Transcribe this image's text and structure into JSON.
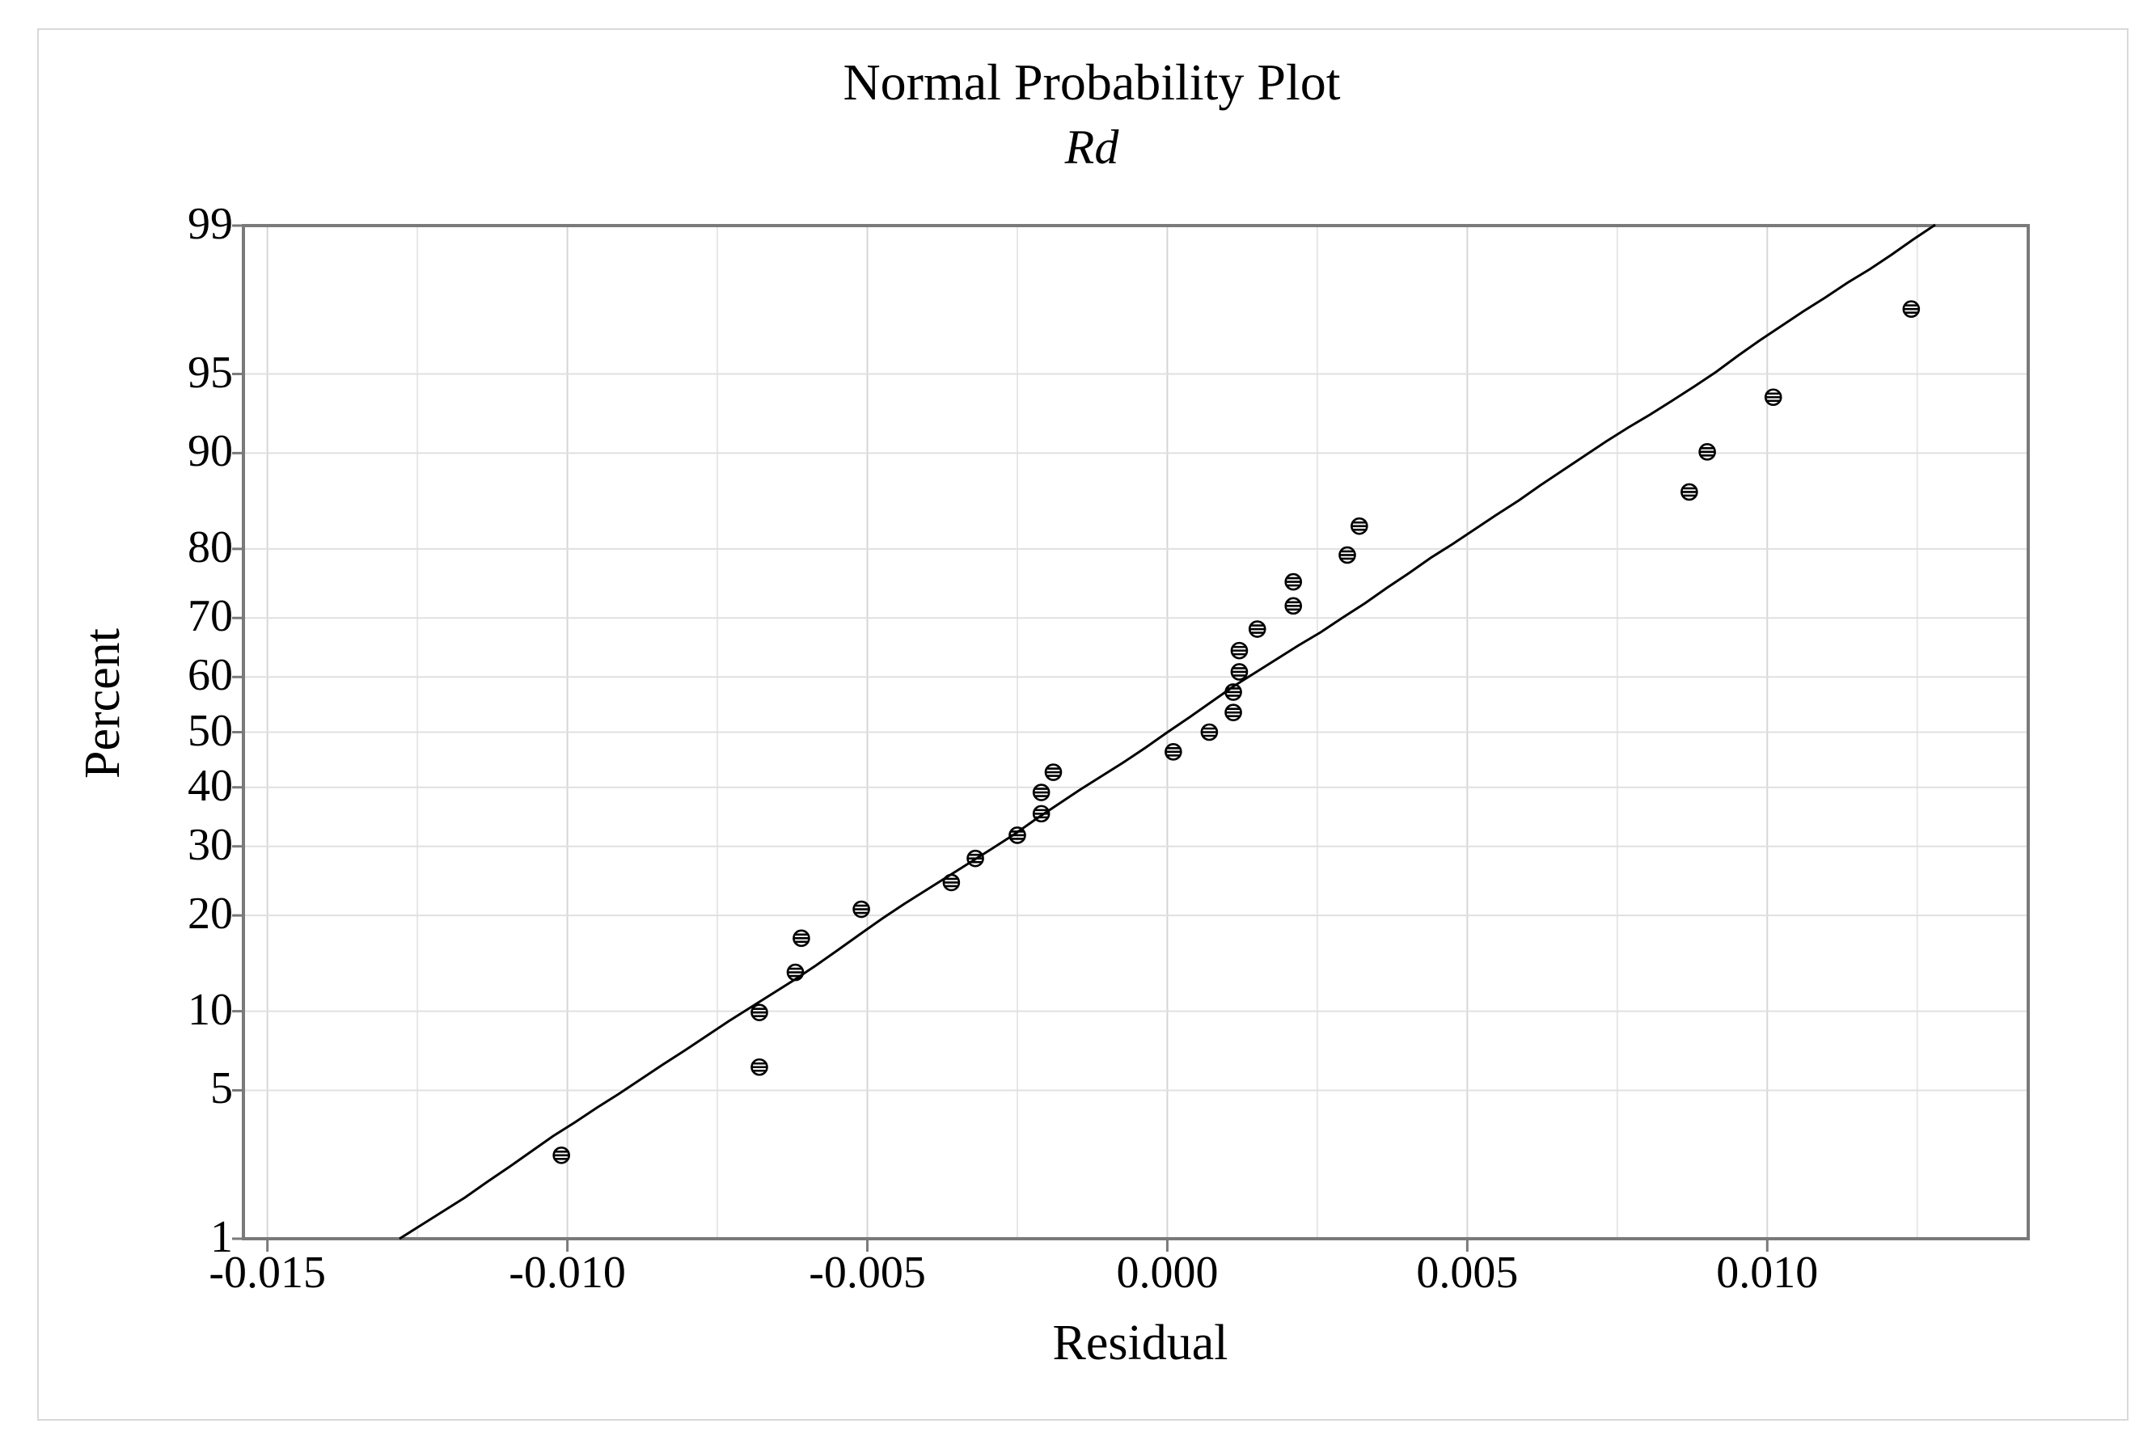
{
  "page": {
    "background": "#ffffff",
    "border_color": "#d9d9d9"
  },
  "chart_data": {
    "type": "scatter",
    "title": "Normal Probability Plot",
    "subtitle": "Rd",
    "xlabel": "Residual",
    "ylabel": "Percent",
    "y_scale": "normal-probability",
    "xlim": [
      -0.0154,
      0.01435
    ],
    "ylim_percent": [
      1,
      99
    ],
    "x_ticks": [
      -0.015,
      -0.01,
      -0.005,
      0.0,
      0.005,
      0.01
    ],
    "x_tick_labels": [
      "-0.015",
      "-0.010",
      "-0.005",
      "0.000",
      "0.005",
      "0.010"
    ],
    "x_minor_ticks": [
      -0.0125,
      -0.0075,
      -0.0025,
      0.0025,
      0.0075,
      0.0125
    ],
    "y_ticks": [
      1,
      5,
      10,
      20,
      30,
      40,
      50,
      60,
      70,
      80,
      90,
      95,
      99
    ],
    "grid": true,
    "legend": "none",
    "points": [
      [
        -0.0101,
        2.6
      ],
      [
        -0.0068,
        6.2
      ],
      [
        -0.0068,
        9.9
      ],
      [
        -0.0062,
        13.5
      ],
      [
        -0.0061,
        17.2
      ],
      [
        -0.0051,
        20.8
      ],
      [
        -0.0036,
        24.5
      ],
      [
        -0.0032,
        28.1
      ],
      [
        -0.0025,
        31.8
      ],
      [
        -0.0021,
        35.4
      ],
      [
        -0.0021,
        39.1
      ],
      [
        -0.0019,
        42.7
      ],
      [
        0.0001,
        46.4
      ],
      [
        0.0007,
        50.0
      ],
      [
        0.0011,
        53.6
      ],
      [
        0.0011,
        57.3
      ],
      [
        0.0012,
        60.9
      ],
      [
        0.0012,
        64.6
      ],
      [
        0.0015,
        68.2
      ],
      [
        0.0021,
        71.9
      ],
      [
        0.0021,
        75.5
      ],
      [
        0.003,
        79.2
      ],
      [
        0.0032,
        82.8
      ],
      [
        0.0087,
        86.5
      ],
      [
        0.009,
        90.1
      ],
      [
        0.0101,
        93.8
      ],
      [
        0.0124,
        97.4
      ]
    ],
    "fit_line": {
      "residual": [
        -0.0128,
        0.0128
      ],
      "percent": [
        1,
        99
      ]
    },
    "colors": {
      "frame": "#7a7a7a",
      "tick": "#7a7a7a",
      "grid_major_vertical": "#d6d6d6",
      "grid_minor_vertical": "#e7e7e7",
      "grid_horizontal": "#e0e0e0",
      "marker": "#000000",
      "fit_line": "#000000",
      "text": "#000000"
    }
  }
}
